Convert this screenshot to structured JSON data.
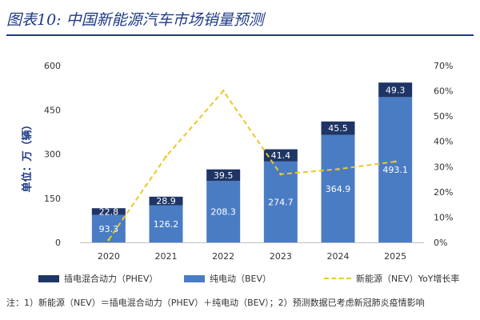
{
  "title": "图表10:  中国新能源汽车市场销量预测",
  "chart_data": {
    "type": "bar",
    "stacked": true,
    "categories": [
      "2020",
      "2021",
      "2022",
      "2023",
      "2024",
      "2025"
    ],
    "series": [
      {
        "name": "纯电动（BEV）",
        "values": [
          93.3,
          126.2,
          208.3,
          274.7,
          364.9,
          493.1
        ],
        "color": "#4a7cc4",
        "labels": [
          "93.3",
          "126.2",
          "208.3",
          "274.7",
          "364.9",
          "493.1"
        ]
      },
      {
        "name": "插电混合动力（PHEV）",
        "values": [
          22.8,
          28.9,
          39.5,
          41.4,
          45.5,
          49.3
        ],
        "color": "#1e3566",
        "labels": [
          "22.8",
          "28.9",
          "39.5",
          "41.4",
          "45.5",
          "49.3"
        ]
      }
    ],
    "line": {
      "name": "新能源（NEV）YoY增长率",
      "values": [
        0.01,
        0.34,
        0.6,
        0.27,
        0.29,
        0.32
      ],
      "color": "#e8c928"
    },
    "ylabel": "单位：万（辆）",
    "ylim": [
      0,
      600
    ],
    "yticks": [
      "0",
      "150",
      "300",
      "450",
      "600"
    ],
    "y2lim": [
      0,
      0.7
    ],
    "y2ticks": [
      "0%",
      "10%",
      "20%",
      "30%",
      "40%",
      "50%",
      "60%",
      "70%"
    ]
  },
  "note": "注：1）新能源（NEV）＝插电混合动力（PHEV）＋纯电动（BEV）；2）预测数据已考虑新冠肺炎疫情影响"
}
